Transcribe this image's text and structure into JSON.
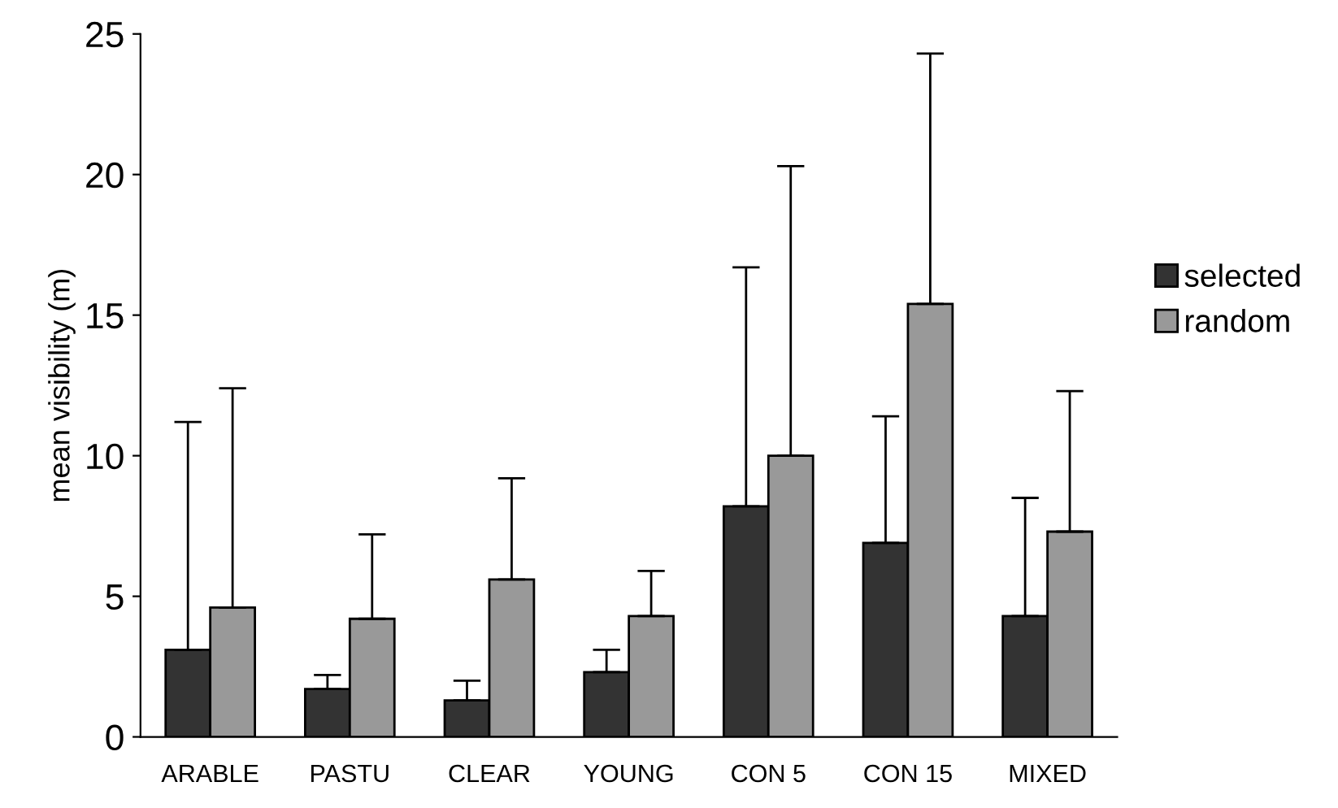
{
  "chart_data": {
    "type": "bar",
    "ylabel": "mean visibility (m)",
    "categories": [
      "ARABLE",
      "PASTU",
      "CLEAR",
      "YOUNG",
      "CON 5",
      "CON 15",
      "MIXED"
    ],
    "series": [
      {
        "name": "selected",
        "color": "#333333",
        "values": [
          3.1,
          1.7,
          1.3,
          2.3,
          8.2,
          6.9,
          4.3
        ],
        "errors": [
          [
            3.1,
            11.2
          ],
          [
            1.7,
            2.2
          ],
          [
            1.3,
            2.0
          ],
          [
            2.3,
            3.1
          ],
          [
            8.2,
            16.7
          ],
          [
            6.9,
            11.4
          ],
          [
            4.3,
            8.5
          ]
        ]
      },
      {
        "name": "random",
        "color": "#999999",
        "values": [
          4.6,
          4.2,
          5.6,
          4.3,
          10.0,
          15.4,
          7.3
        ],
        "errors": [
          [
            4.6,
            12.4
          ],
          [
            4.2,
            7.2
          ],
          [
            5.6,
            9.2
          ],
          [
            4.3,
            5.9
          ],
          [
            10.0,
            20.3
          ],
          [
            15.4,
            24.3
          ],
          [
            7.3,
            12.3
          ]
        ]
      }
    ],
    "ylim": [
      0,
      25
    ],
    "yticks": [
      0,
      5,
      10,
      15,
      20,
      25
    ],
    "grid": false,
    "legend": "right"
  }
}
